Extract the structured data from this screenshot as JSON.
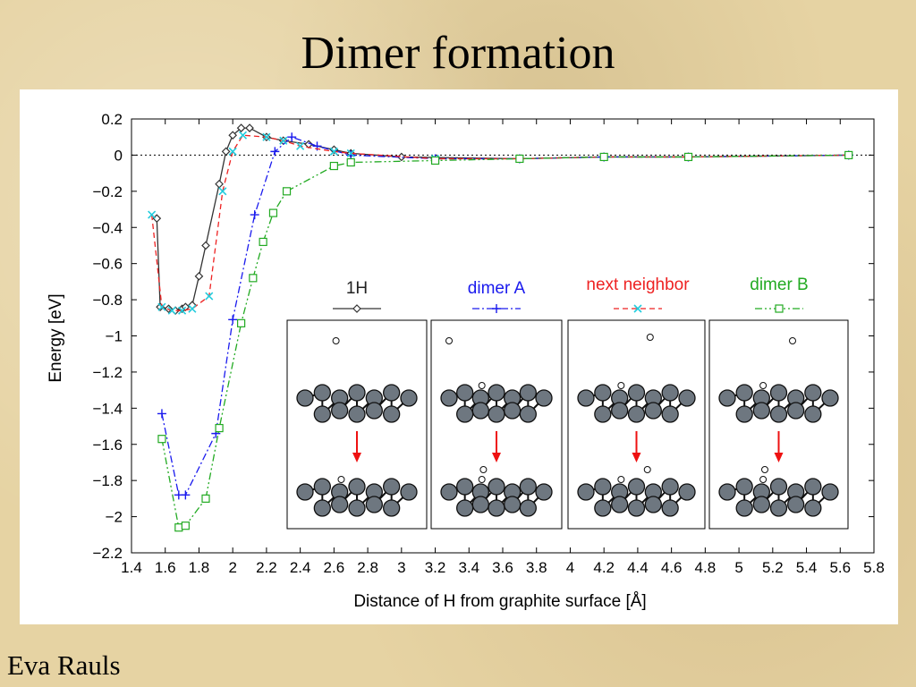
{
  "slide": {
    "title": "Dimer formation",
    "author": "Eva Rauls"
  },
  "colors": {
    "1H": "#333333",
    "dimer A": "#1a1aee",
    "next neighbor": "#ee2222",
    "dimer B": "#22aa22"
  },
  "chart_data": {
    "type": "line",
    "xlabel": "Distance of H from graphite surface [Å]",
    "ylabel": "Energy [eV]",
    "xlim": [
      1.4,
      5.8
    ],
    "ylim": [
      -2.2,
      0.2
    ],
    "xticks": [
      "1.4",
      "1.6",
      "1.8",
      "2",
      "2.2",
      "2.4",
      "2.6",
      "2.8",
      "3",
      "3.2",
      "3.4",
      "3.6",
      "3.8",
      "4",
      "4.2",
      "4.4",
      "4.6",
      "4.8",
      "5",
      "5.2",
      "5.4",
      "5.6",
      "5.8"
    ],
    "yticks": [
      "0.2",
      "0",
      "−0.2",
      "−0.4",
      "−0.6",
      "−0.8",
      "−1",
      "−1.2",
      "−1.4",
      "−1.6",
      "−1.8",
      "−2",
      "−2.2"
    ],
    "zero_line": true,
    "series": [
      {
        "name": "1H",
        "marker": "diamond",
        "dash": "",
        "x": [
          1.55,
          1.57,
          1.62,
          1.66,
          1.7,
          1.72,
          1.76,
          1.8,
          1.84,
          1.92,
          1.96,
          2.0,
          2.05,
          2.1,
          2.2,
          2.3,
          2.45,
          2.6,
          2.7,
          3.0,
          3.7,
          4.2,
          4.7,
          5.65
        ],
        "y": [
          -0.35,
          -0.84,
          -0.85,
          -0.86,
          -0.85,
          -0.84,
          -0.83,
          -0.67,
          -0.5,
          -0.16,
          0.02,
          0.11,
          0.15,
          0.15,
          0.1,
          0.08,
          0.06,
          0.03,
          0.01,
          -0.01,
          -0.02,
          -0.01,
          -0.01,
          0.0
        ]
      },
      {
        "name": "dimer A",
        "marker": "plus",
        "dash": "8,3,2,3",
        "x": [
          1.58,
          1.68,
          1.72,
          1.9,
          2.0,
          2.13,
          2.25,
          2.35,
          2.5,
          2.7,
          3.2,
          3.7,
          4.2,
          4.7,
          5.65
        ],
        "y": [
          -1.43,
          -1.88,
          -1.88,
          -1.54,
          -0.91,
          -0.33,
          0.02,
          0.1,
          0.05,
          0.0,
          -0.02,
          -0.02,
          -0.01,
          -0.01,
          0.0
        ]
      },
      {
        "name": "next neighbor",
        "marker": "cross",
        "dash": "6,4",
        "x": [
          1.52,
          1.58,
          1.64,
          1.7,
          1.76,
          1.86,
          1.94,
          2.0,
          2.06,
          2.2,
          2.3,
          2.4,
          2.6,
          2.7,
          3.2,
          3.7,
          4.2,
          4.7,
          5.65
        ],
        "y": [
          -0.33,
          -0.84,
          -0.86,
          -0.86,
          -0.85,
          -0.78,
          -0.2,
          0.02,
          0.11,
          0.1,
          0.08,
          0.05,
          0.02,
          0.01,
          -0.02,
          -0.02,
          -0.01,
          -0.01,
          0.0
        ]
      },
      {
        "name": "dimer B",
        "marker": "square",
        "dash": "8,3,2,3,2,3",
        "x": [
          1.58,
          1.68,
          1.72,
          1.84,
          1.92,
          2.05,
          2.12,
          2.18,
          2.24,
          2.32,
          2.6,
          2.7,
          3.2,
          3.7,
          4.2,
          4.7,
          5.65
        ],
        "y": [
          -1.57,
          -2.06,
          -2.05,
          -1.9,
          -1.51,
          -0.93,
          -0.68,
          -0.48,
          -0.32,
          -0.2,
          -0.06,
          -0.04,
          -0.03,
          -0.02,
          -0.01,
          -0.01,
          0.0
        ]
      }
    ],
    "legend": {
      "placement": "inset lower-right",
      "labels": [
        "1H",
        "dimer A",
        "next neighbor",
        "dimer B"
      ]
    }
  }
}
